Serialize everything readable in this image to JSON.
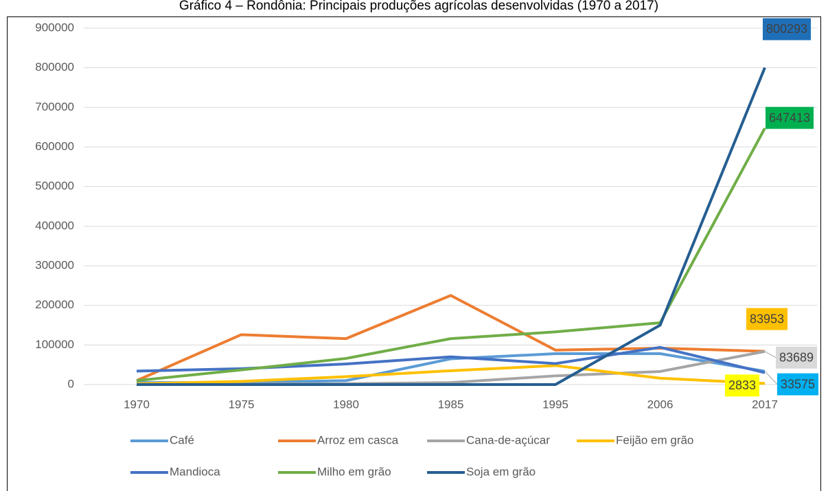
{
  "chart_data": {
    "type": "line",
    "title": "Gráfico 4 – Rondônia: Principais produções agrícolas desenvolvidas (1970 a 2017)",
    "categories": [
      "1970",
      "1975",
      "1980",
      "1985",
      "1995",
      "2006",
      "2017"
    ],
    "ylim": [
      0,
      900000
    ],
    "yticks": [
      0,
      100000,
      200000,
      300000,
      400000,
      500000,
      600000,
      700000,
      800000,
      900000
    ],
    "grid": true,
    "legend": "bottom",
    "series": [
      {
        "name": "Café",
        "color": "#5b9bd5",
        "values": [
          5000,
          5000,
          10000,
          65000,
          78000,
          78000,
          33575
        ],
        "label_last": true,
        "label_color": "#00b0f0"
      },
      {
        "name": "Arroz em casca",
        "color": "#ed7d31",
        "values": [
          10000,
          126000,
          116000,
          225000,
          87000,
          92000,
          83953
        ],
        "label_last": true,
        "label_color": "#ffc000"
      },
      {
        "name": "Cana-de-açúcar",
        "color": "#a5a5a5",
        "values": [
          0,
          1000,
          2000,
          5000,
          22000,
          33000,
          83689
        ],
        "label_last": true,
        "label_color": "#d9d9d9"
      },
      {
        "name": "Feijão em grão",
        "color": "#ffc000",
        "values": [
          2000,
          8000,
          20000,
          35000,
          48000,
          16000,
          2833
        ],
        "label_last": true,
        "label_color": "#ffff00"
      },
      {
        "name": "Mandioca",
        "color": "#4472c4",
        "values": [
          34000,
          40000,
          52000,
          70000,
          53000,
          94000,
          30000
        ],
        "label_last": false
      },
      {
        "name": "Milho em grão",
        "color": "#70ad47",
        "values": [
          10000,
          37000,
          66000,
          116000,
          133000,
          156000,
          647413
        ],
        "label_last": true,
        "label_color": "#00b050"
      },
      {
        "name": "Soja em grão",
        "color": "#255e91",
        "values": [
          0,
          0,
          0,
          0,
          0,
          150000,
          800293
        ],
        "label_last": true,
        "label_color": "#1f6fb8"
      }
    ]
  }
}
